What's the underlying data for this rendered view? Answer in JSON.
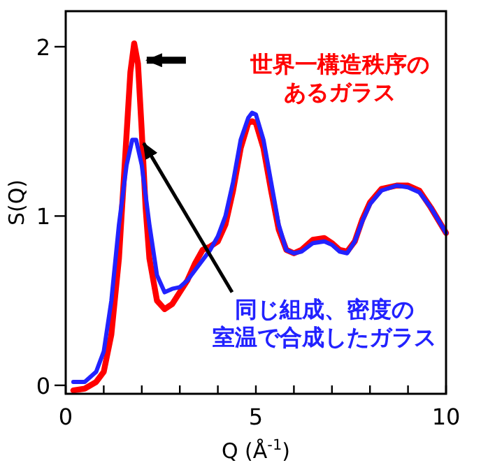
{
  "chart_data": {
    "type": "line",
    "xlabel": "Q (Å$^{-1}$)",
    "ylabel": "S(Q)",
    "xlim": [
      0,
      10
    ],
    "ylim": [
      -0.05,
      2.21
    ],
    "xticks": [
      0,
      {
        "value": 1,
        "label": null
      },
      {
        "value": 2,
        "label": null
      },
      {
        "value": 3,
        "label": null
      },
      {
        "value": 4,
        "label": null
      },
      5,
      {
        "value": 6,
        "label": null
      },
      {
        "value": 7,
        "label": null
      },
      {
        "value": 8,
        "label": null
      },
      {
        "value": 9,
        "label": null
      },
      10
    ],
    "yticks": [
      0,
      1,
      2
    ],
    "grid": false,
    "marker": "none",
    "line_style": "solid",
    "series": [
      {
        "color": "#ff0000",
        "x": [
          0.2,
          0.5,
          0.8,
          1.0,
          1.2,
          1.4,
          1.55,
          1.7,
          1.8,
          1.9,
          2.0,
          2.1,
          2.2,
          2.4,
          2.6,
          2.8,
          3.0,
          3.2,
          3.4,
          3.6,
          3.8,
          4.0,
          4.2,
          4.4,
          4.6,
          4.8,
          4.9,
          5.0,
          5.2,
          5.4,
          5.6,
          5.8,
          6.0,
          6.2,
          6.5,
          6.8,
          7.0,
          7.2,
          7.4,
          7.6,
          7.8,
          8.0,
          8.3,
          8.7,
          9.0,
          9.3,
          9.6,
          10
        ],
        "values": [
          -0.03,
          -0.02,
          0.02,
          0.08,
          0.3,
          0.75,
          1.3,
          1.85,
          2.02,
          1.9,
          1.5,
          1.05,
          0.75,
          0.5,
          0.45,
          0.48,
          0.55,
          0.62,
          0.72,
          0.8,
          0.82,
          0.85,
          0.95,
          1.15,
          1.4,
          1.55,
          1.56,
          1.55,
          1.4,
          1.15,
          0.92,
          0.8,
          0.78,
          0.8,
          0.86,
          0.87,
          0.84,
          0.8,
          0.79,
          0.85,
          0.98,
          1.08,
          1.16,
          1.18,
          1.18,
          1.15,
          1.05,
          0.9
        ]
      },
      {
        "color": "#2222ff",
        "x": [
          0.2,
          0.5,
          0.8,
          1.0,
          1.2,
          1.4,
          1.6,
          1.75,
          1.85,
          2.0,
          2.2,
          2.4,
          2.6,
          2.8,
          3.0,
          3.2,
          3.4,
          3.6,
          3.8,
          4.0,
          4.2,
          4.4,
          4.6,
          4.8,
          4.9,
          5.0,
          5.2,
          5.4,
          5.6,
          5.8,
          6.0,
          6.2,
          6.5,
          6.8,
          7.0,
          7.2,
          7.4,
          7.6,
          7.8,
          8.0,
          8.3,
          8.7,
          9.0,
          9.3,
          9.6,
          10
        ],
        "values": [
          0.02,
          0.02,
          0.08,
          0.2,
          0.5,
          0.95,
          1.3,
          1.45,
          1.45,
          1.3,
          0.95,
          0.65,
          0.55,
          0.57,
          0.58,
          0.62,
          0.68,
          0.74,
          0.8,
          0.88,
          1.0,
          1.2,
          1.45,
          1.58,
          1.61,
          1.6,
          1.45,
          1.2,
          0.95,
          0.8,
          0.78,
          0.79,
          0.84,
          0.85,
          0.83,
          0.79,
          0.78,
          0.85,
          0.97,
          1.07,
          1.15,
          1.18,
          1.17,
          1.14,
          1.05,
          0.9
        ]
      }
    ],
    "annotations": [
      "世界一構造秩序のあるガラス",
      "同じ組成、密度の室温で合成したガラス"
    ]
  }
}
